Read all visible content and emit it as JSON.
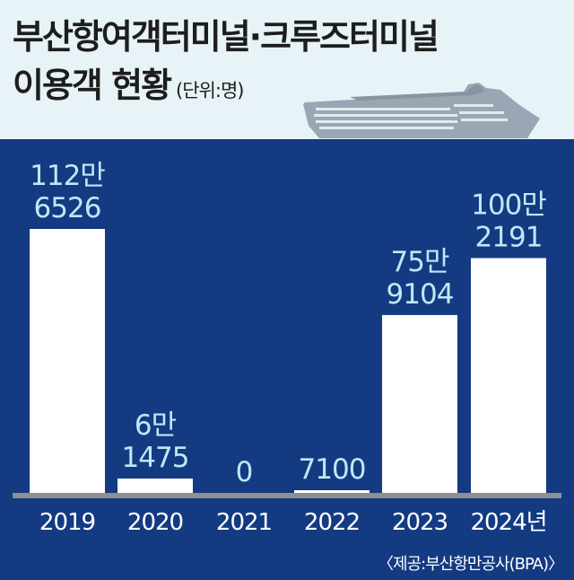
{
  "title": {
    "line1": "부산항여객터미널·크루즈터미널",
    "line2": "이용객 현황",
    "unit": "(단위:명)"
  },
  "source": "〈제공:부산항만공사(BPA)〉",
  "colors": {
    "background": "#143a82",
    "header": "#e8f3f7",
    "bar": "#ffffff",
    "value_label": "#bfe8f5",
    "baseline": "#8f8f8f"
  },
  "icons": [
    "cruise-ship-icon"
  ],
  "chart_data": {
    "type": "bar",
    "categories": [
      "2019",
      "2020",
      "2021",
      "2022",
      "2023",
      "2024년"
    ],
    "values": [
      1126526,
      61475,
      0,
      7100,
      759104,
      1002191
    ],
    "value_labels": [
      [
        "112만",
        "6526"
      ],
      [
        "6만",
        "1475"
      ],
      [
        "0"
      ],
      [
        "7100"
      ],
      [
        "75만",
        "9104"
      ],
      [
        "100만",
        "2191"
      ]
    ],
    "title": "부산항여객터미널·크루즈터미널 이용객 현황",
    "unit": "명",
    "ylim": [
      0,
      1150000
    ],
    "grid": false,
    "legend": "none"
  }
}
